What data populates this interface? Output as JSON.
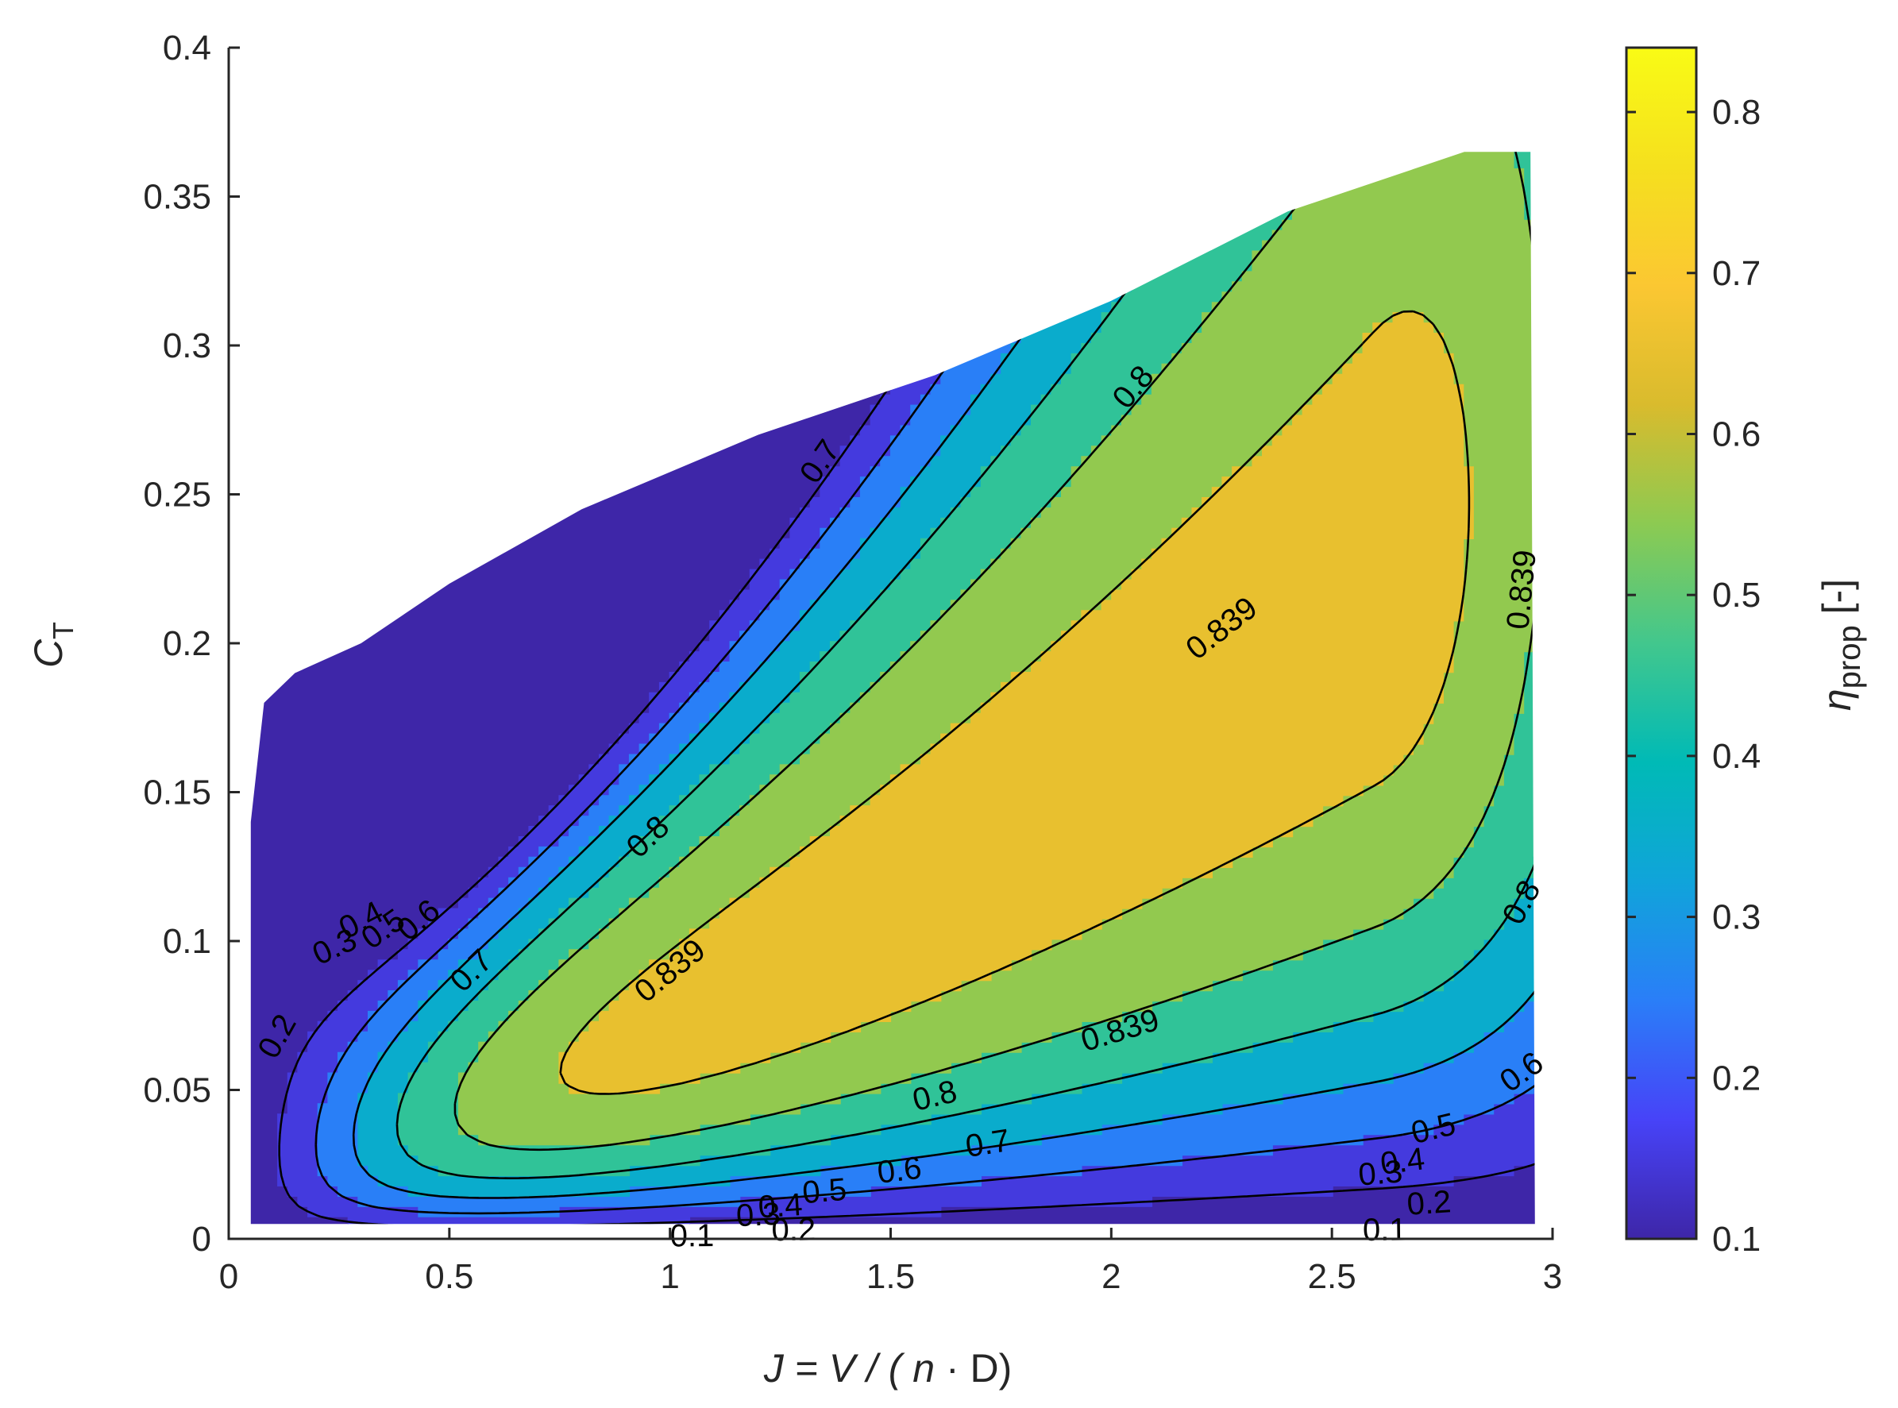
{
  "chart_data": {
    "type": "heatmap",
    "subtype": "filled-contour",
    "title": "",
    "xlabel": {
      "italic": "J =  V / ( n",
      "upright": " · D)"
    },
    "ylabel": {
      "main": "C",
      "sub": "T"
    },
    "colorbar_label": {
      "eta": "η",
      "sub": "prop",
      "unit": " [-]"
    },
    "xlim": [
      0,
      3
    ],
    "ylim": [
      0,
      0.4
    ],
    "xticks": [
      "0",
      "0.5",
      "1",
      "1.5",
      "2",
      "2.5",
      "3"
    ],
    "xtick_values": [
      0,
      0.5,
      1,
      1.5,
      2,
      2.5,
      3
    ],
    "yticks": [
      "0",
      "0.05",
      "0.1",
      "0.15",
      "0.2",
      "0.25",
      "0.3",
      "0.35",
      "0.4"
    ],
    "ytick_values": [
      0,
      0.05,
      0.1,
      0.15,
      0.2,
      0.25,
      0.3,
      0.35,
      0.4
    ],
    "colorbar": {
      "range": [
        0.1,
        0.84
      ],
      "ticks": [
        "0.1",
        "0.2",
        "0.3",
        "0.4",
        "0.5",
        "0.6",
        "0.7",
        "0.8"
      ],
      "tick_values": [
        0.1,
        0.2,
        0.3,
        0.4,
        0.5,
        0.6,
        0.7,
        0.8
      ],
      "colormap": "parula",
      "colormap_stops": [
        "#3e26a8",
        "#4743f8",
        "#2a7ef8",
        "#10a4da",
        "#00bab6",
        "#42c78d",
        "#8cca52",
        "#d9bb2d",
        "#fbc732",
        "#f5e01e",
        "#f9fb15"
      ]
    },
    "contour_levels": [
      0.1,
      0.2,
      0.3,
      0.4,
      0.5,
      0.6,
      0.7,
      0.8,
      0.839
    ],
    "domain_boundary": {
      "points": [
        [
          0.05,
          0.005
        ],
        [
          0.05,
          0.14
        ],
        [
          0.08,
          0.18
        ],
        [
          0.15,
          0.19
        ],
        [
          0.3,
          0.2
        ],
        [
          0.5,
          0.22
        ],
        [
          0.8,
          0.245
        ],
        [
          1.2,
          0.27
        ],
        [
          1.6,
          0.29
        ],
        [
          2.0,
          0.315
        ],
        [
          2.4,
          0.345
        ],
        [
          2.8,
          0.365
        ],
        [
          2.95,
          0.365
        ],
        [
          2.96,
          0.005
        ]
      ]
    },
    "contour_annotations": [
      {
        "text": "0.1",
        "x": 1.05,
        "y": 0.001
      },
      {
        "text": "0.2",
        "x": 1.28,
        "y": 0.003
      },
      {
        "text": "0.3",
        "x": 1.2,
        "y": 0.008
      },
      {
        "text": "0.4",
        "x": 1.25,
        "y": 0.011
      },
      {
        "text": "0.5",
        "x": 1.35,
        "y": 0.016
      },
      {
        "text": "0.6",
        "x": 1.52,
        "y": 0.023
      },
      {
        "text": "0.7",
        "x": 1.72,
        "y": 0.032
      },
      {
        "text": "0.8",
        "x": 1.6,
        "y": 0.048
      },
      {
        "text": "0.839",
        "x": 2.02,
        "y": 0.07
      },
      {
        "text": "0.839",
        "x": 1.0,
        "y": 0.09
      },
      {
        "text": "0.8",
        "x": 0.95,
        "y": 0.135
      },
      {
        "text": "0.7",
        "x": 0.55,
        "y": 0.09
      },
      {
        "text": "0.6",
        "x": 0.43,
        "y": 0.107
      },
      {
        "text": "0.5",
        "x": 0.35,
        "y": 0.104
      },
      {
        "text": "0.4",
        "x": 0.3,
        "y": 0.107
      },
      {
        "text": "0.3",
        "x": 0.24,
        "y": 0.098
      },
      {
        "text": "0.2",
        "x": 0.11,
        "y": 0.068
      },
      {
        "text": "0.7",
        "x": 1.34,
        "y": 0.261
      },
      {
        "text": "0.8",
        "x": 2.05,
        "y": 0.286
      },
      {
        "text": "0.839",
        "x": 2.25,
        "y": 0.205
      },
      {
        "text": "0.839",
        "x": 2.93,
        "y": 0.218
      },
      {
        "text": "0.8",
        "x": 2.93,
        "y": 0.113
      },
      {
        "text": "0.6",
        "x": 2.93,
        "y": 0.056
      },
      {
        "text": "0.5",
        "x": 2.73,
        "y": 0.037
      },
      {
        "text": "0.4",
        "x": 2.66,
        "y": 0.026
      },
      {
        "text": "0.3",
        "x": 2.61,
        "y": 0.022
      },
      {
        "text": "0.2",
        "x": 2.72,
        "y": 0.012
      },
      {
        "text": "0.1",
        "x": 2.62,
        "y": 0.003
      }
    ]
  }
}
